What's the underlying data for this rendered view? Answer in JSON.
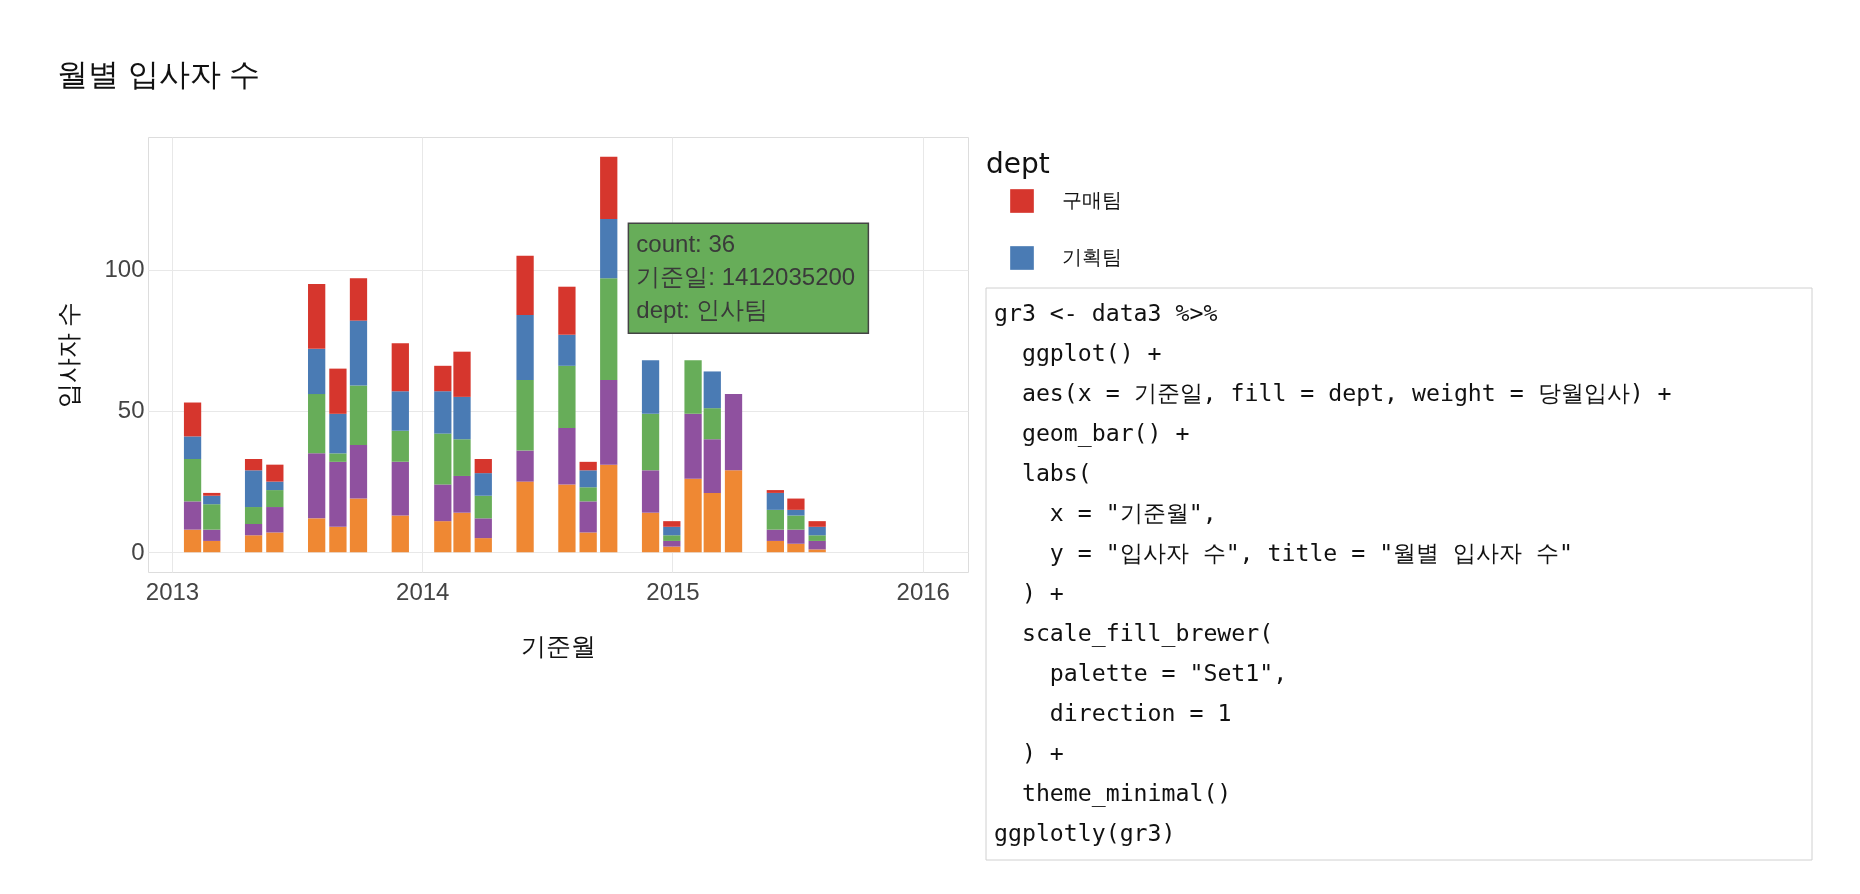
{
  "chart_data": {
    "type": "bar",
    "title": "월별 입사자 수",
    "xlabel": "기준월",
    "ylabel": "입사자 수",
    "legend_title": "dept",
    "x": [
      "2013-01-31",
      "2013-02-28",
      "2013-04-30",
      "2013-05-31",
      "2013-07-31",
      "2013-08-31",
      "2013-09-30",
      "2013-11-30",
      "2014-01-31",
      "2014-02-28",
      "2014-03-31",
      "2014-05-31",
      "2014-07-31",
      "2014-08-31",
      "2014-09-30",
      "2014-11-30",
      "2014-12-31",
      "2015-01-31",
      "2015-02-28",
      "2015-03-31",
      "2015-05-31",
      "2015-06-30",
      "2015-07-31"
    ],
    "series": [
      {
        "color": "#ef8833",
        "values": [
          8,
          4,
          6,
          7,
          12,
          9,
          19,
          13,
          11,
          14,
          5,
          25,
          24,
          7,
          31,
          14,
          2,
          26,
          21,
          29,
          4,
          3,
          1
        ]
      },
      {
        "color": "#8f519f",
        "values": [
          10,
          4,
          4,
          9,
          23,
          23,
          19,
          19,
          13,
          13,
          7,
          11,
          20,
          11,
          30,
          15,
          2,
          23,
          19,
          27,
          4,
          5,
          3
        ]
      },
      {
        "color": "#67ad59",
        "values": [
          15,
          9,
          6,
          6,
          21,
          3,
          21,
          11,
          18,
          13,
          8,
          25,
          22,
          5,
          36,
          20,
          2,
          19,
          11,
          null,
          7,
          5,
          2
        ]
      },
      {
        "name": "기획팀",
        "color": "#4a7bb4",
        "values": [
          8,
          3,
          13,
          3,
          16,
          14,
          23,
          14,
          15,
          15,
          8,
          23,
          11,
          6,
          21,
          19,
          3,
          null,
          13,
          null,
          6,
          2,
          3
        ]
      },
      {
        "name": "구매팀",
        "color": "#d6362d",
        "values": [
          12,
          1,
          4,
          6,
          23,
          16,
          15,
          17,
          9,
          16,
          5,
          21,
          17,
          3,
          22,
          null,
          2,
          null,
          null,
          null,
          1,
          4,
          2
        ]
      }
    ],
    "stacked": true,
    "xlim": [
      "2012-11-27",
      "2016-03-07"
    ],
    "xticks": [
      "2013",
      "2014",
      "2015",
      "2016"
    ],
    "ylim": [
      -7,
      147
    ],
    "yticks": [
      0,
      50,
      100
    ],
    "grid": true,
    "legend": "top right",
    "annotations": [
      {
        "text": "count: 36\n기준일: 1412035200\ndept: 인사팀",
        "x": "2014-09-30",
        "y": 97
      },
      "gr3 <- data3 %>%",
      "  ggplot() +",
      "  aes(x = 기준일, fill = dept, weight = 당월입사) +",
      "  geom_bar() +",
      "  labs(",
      "    x = \"기준월\",",
      "    y = \"입사자 수\", title = \"월별 입사자 수\"",
      "  ) +",
      "  scale_fill_brewer(",
      "    palette = \"Set1\",",
      "    direction = 1",
      "  ) +",
      "  theme_minimal()",
      "ggplotly(gr3)"
    ]
  }
}
